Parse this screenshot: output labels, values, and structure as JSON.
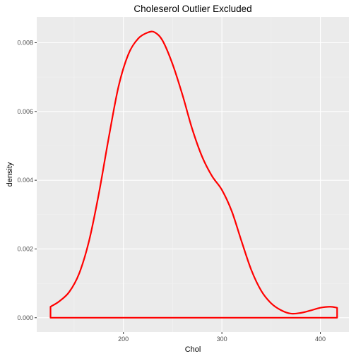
{
  "chart_data": {
    "type": "area",
    "title": "Choleserol Outlier Excluded",
    "xlabel": "Chol",
    "ylabel": "density",
    "xlim": [
      112,
      429
    ],
    "ylim": [
      -0.000415,
      0.00875
    ],
    "x_ticks": [
      200,
      300,
      400
    ],
    "x_tick_labels": [
      "200",
      "300",
      "400"
    ],
    "y_ticks": [
      0.0,
      0.002,
      0.004,
      0.006,
      0.008
    ],
    "y_tick_labels": [
      "0.000",
      "0.002",
      "0.004",
      "0.006",
      "0.008"
    ],
    "grid": true,
    "legend": "none",
    "series": [
      {
        "x": [
          126,
          135,
          145,
          155,
          165,
          175,
          185,
          195,
          205,
          215,
          225,
          232,
          240,
          250,
          260,
          270,
          280,
          290,
          300,
          310,
          320,
          330,
          340,
          350,
          360,
          370,
          380,
          390,
          400,
          410,
          417
        ],
        "y": [
          0.00032,
          0.00048,
          0.00075,
          0.00128,
          0.00222,
          0.0036,
          0.00522,
          0.00672,
          0.00766,
          0.00812,
          0.0083,
          0.0083,
          0.00805,
          0.00737,
          0.00648,
          0.00548,
          0.00468,
          0.00412,
          0.00372,
          0.0031,
          0.00222,
          0.00138,
          0.00078,
          0.00042,
          0.00022,
          0.00012,
          0.00014,
          0.00021,
          0.00029,
          0.00032,
          0.00029
        ]
      }
    ]
  },
  "colors": {
    "panel_background": "#EBEBEB",
    "grid_major": "#FFFFFF",
    "grid_minor": "#F2F2F2",
    "line": "#FF0000",
    "tick_text": "#4D4D4D",
    "title_text": "#000000"
  }
}
